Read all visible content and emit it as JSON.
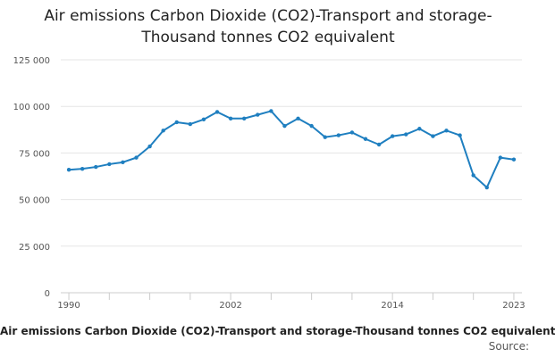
{
  "chart_data": {
    "type": "line",
    "title": "Air emissions Carbon Dioxide (CO2)-Transport and storage-\nThousand tonnes CO2 equivalent",
    "x": [
      1990,
      1991,
      1992,
      1993,
      1994,
      1995,
      1996,
      1997,
      1998,
      1999,
      2000,
      2001,
      2002,
      2003,
      2004,
      2005,
      2006,
      2007,
      2008,
      2009,
      2010,
      2011,
      2012,
      2013,
      2014,
      2015,
      2016,
      2017,
      2018,
      2019,
      2020,
      2021,
      2022,
      2023
    ],
    "series": [
      {
        "values": [
          66000,
          66500,
          67500,
          69000,
          70000,
          72500,
          78500,
          87000,
          91500,
          90500,
          93000,
          97000,
          93500,
          93500,
          95500,
          97500,
          89500,
          93500,
          89500,
          83500,
          84500,
          86000,
          82500,
          79500,
          84000,
          85000,
          88000,
          84000,
          87000,
          84500,
          63000,
          56500,
          72500,
          71500
        ],
        "color": "#1f7fc0"
      }
    ],
    "ylim": [
      0,
      125000
    ],
    "y_ticks": [
      0,
      25000,
      50000,
      75000,
      100000,
      125000
    ],
    "y_tick_labels": [
      "0",
      "25 000",
      "50 000",
      "75 000",
      "100 000",
      "125 000"
    ],
    "x_tick_labels": [
      "1990",
      "2002",
      "2014",
      "2023"
    ],
    "grid": "horizontal",
    "caption": "Air emissions Carbon Dioxide (CO2)-Transport and storage-Thousand tonnes CO2 equivalent",
    "source": "Source:"
  }
}
